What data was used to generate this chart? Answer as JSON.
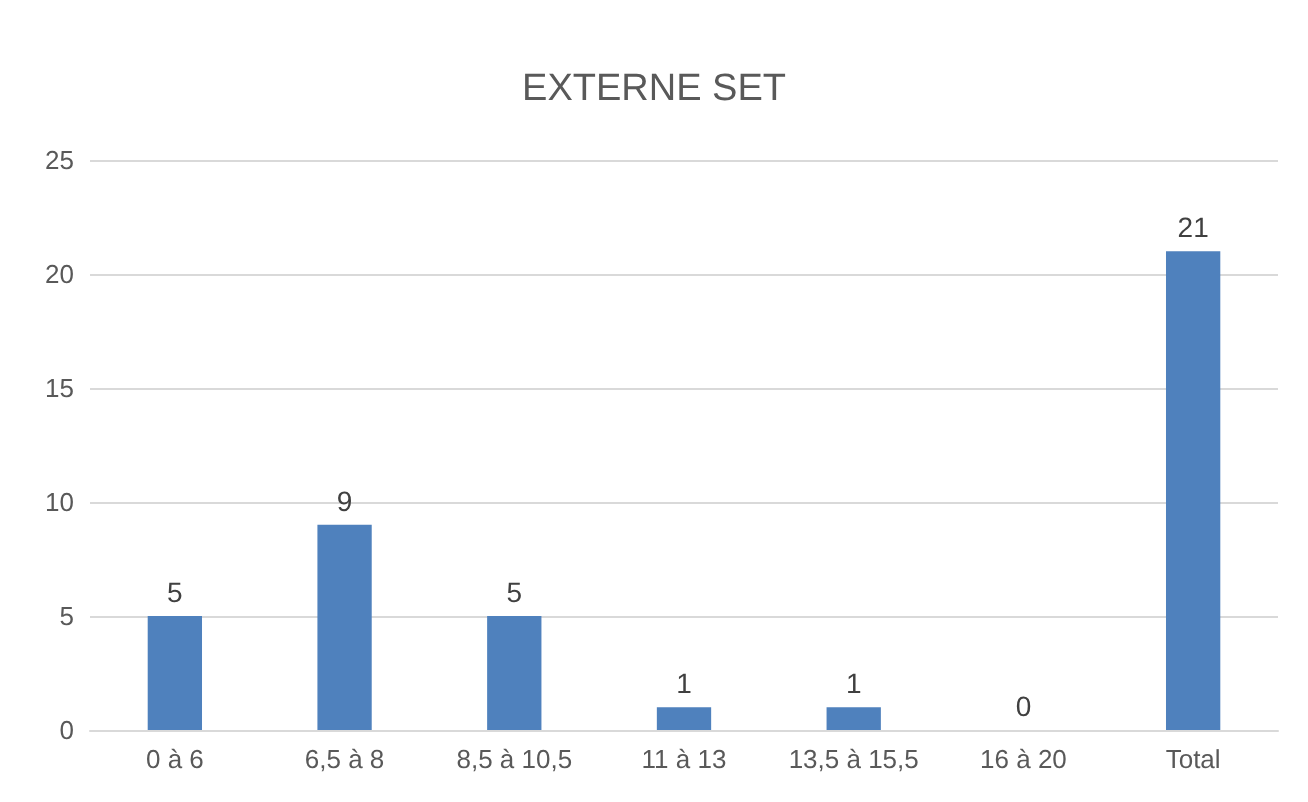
{
  "chart_data": {
    "type": "bar",
    "title": "EXTERNE SET",
    "categories": [
      "0 à 6",
      "6,5 à 8",
      "8,5 à 10,5",
      "11 à 13",
      "13,5 à 15,5",
      "16 à 20",
      "Total"
    ],
    "values": [
      5,
      9,
      5,
      1,
      1,
      0,
      21
    ],
    "color": "#4f81bd",
    "ylim": [
      0,
      25
    ],
    "yticks": [
      0,
      5,
      10,
      15,
      20,
      25
    ],
    "grid": "y",
    "data_labels": true
  }
}
